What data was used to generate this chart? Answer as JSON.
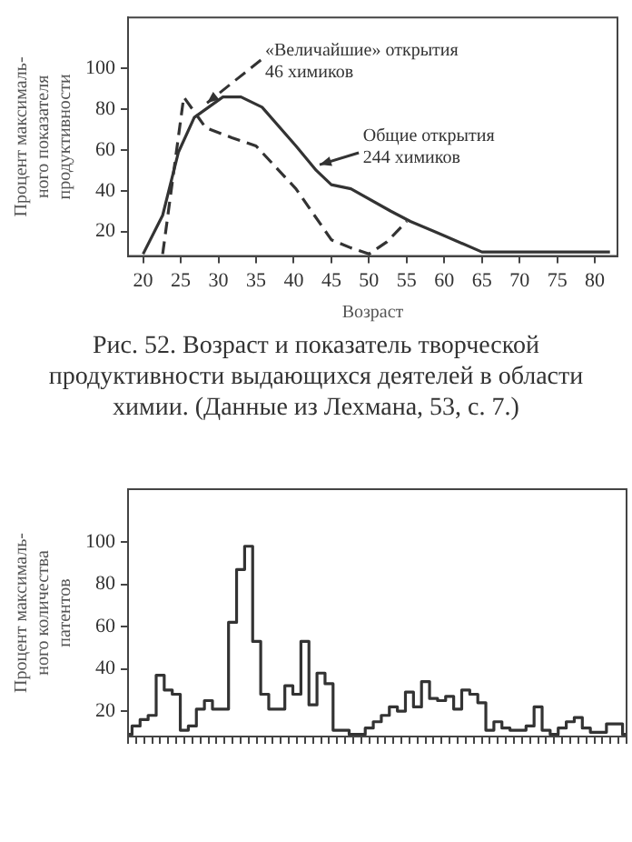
{
  "chart_data": [
    {
      "type": "line",
      "xlabel": "Возраст",
      "ylabel": "Процент максималь-\nного показателя\nпродуктивности",
      "xlim": [
        18,
        83
      ],
      "xticks": [
        20,
        25,
        30,
        35,
        40,
        45,
        50,
        55,
        60,
        65,
        70,
        75,
        80
      ],
      "ylim": [
        8,
        125
      ],
      "yticks": [
        20,
        40,
        60,
        80,
        100
      ],
      "marker": "none",
      "annotations": [
        "Рис. 52. Возраст и показатель творческой продуктивности выдающихся деятелей в области химии. (Данные из Лехмана, 53, с. 7.)"
      ],
      "series": [
        {
          "name": "Общие открытия\n244 химиков",
          "color": "#333333",
          "line_style": "solid",
          "x": [
            20,
            22.6,
            24.7,
            26.8,
            30.6,
            33,
            35.8,
            40.3,
            43,
            45,
            47.6,
            52.9,
            55.5,
            60,
            65,
            82
          ],
          "values": [
            9,
            28,
            59,
            76,
            86,
            86,
            81,
            62,
            50,
            43,
            41,
            30,
            25,
            18,
            10,
            10
          ]
        },
        {
          "name": "«Величайшие» открытия\n46 химиков",
          "color": "#333333",
          "line_style": "dashed",
          "x": [
            22.6,
            25.4,
            28.3,
            31.8,
            35,
            40.3,
            45,
            47.6,
            50,
            52.4,
            55
          ],
          "values": [
            9,
            86,
            71,
            66,
            62,
            41,
            16,
            12,
            9,
            15,
            25
          ]
        }
      ]
    },
    {
      "type": "step",
      "ylabel": "Процент максималь-\nного количества\nпатентов",
      "ylim": [
        8,
        125
      ],
      "yticks": [
        20,
        40,
        60,
        80,
        100
      ],
      "tick_labels": "y",
      "marker": "none",
      "categories": [
        null,
        null,
        null,
        null,
        null,
        null,
        null,
        null,
        null,
        null,
        null,
        null,
        null,
        null,
        null,
        null,
        null,
        null,
        null,
        null,
        null,
        null,
        null,
        null,
        null,
        null,
        null,
        null,
        null,
        null,
        null,
        null,
        null,
        null,
        null,
        null,
        null,
        null,
        null,
        null,
        null,
        null,
        null,
        null,
        null,
        null,
        null,
        null,
        null,
        null,
        null,
        null,
        null,
        null,
        null,
        null,
        null,
        null,
        null,
        null,
        null,
        null,
        null
      ],
      "values": [
        9,
        13,
        16,
        18,
        37,
        30,
        28,
        11,
        13,
        21,
        25,
        21,
        21,
        62,
        87,
        98,
        53,
        28,
        21,
        21,
        32,
        28,
        53,
        23,
        38,
        33,
        11,
        11,
        9,
        9,
        12,
        15,
        18,
        22,
        20,
        29,
        22,
        34,
        26,
        25,
        27,
        21,
        30,
        28,
        24,
        11,
        15,
        12,
        11,
        11,
        13,
        22,
        11,
        9,
        12,
        15,
        17,
        12,
        10,
        10,
        14,
        14,
        9
      ],
      "color": "#333333"
    }
  ]
}
